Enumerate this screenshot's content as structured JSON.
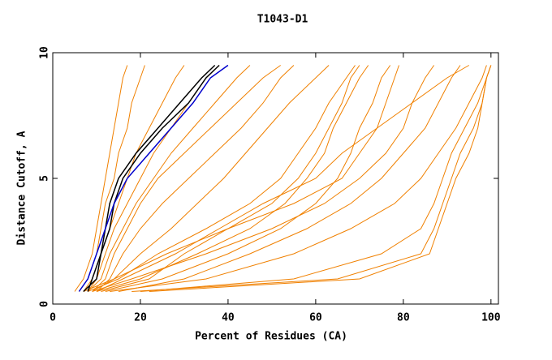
{
  "chart_data": {
    "type": "line",
    "title": "T1043-D1",
    "x_label": "Percent of Residues (CA)",
    "y_label": "Distance Cutoff, A",
    "xlim": [
      0,
      101.7
    ],
    "ylim": [
      0,
      10
    ],
    "xticks": [
      0,
      20,
      40,
      60,
      80,
      100
    ],
    "yticks": [
      0,
      5,
      10
    ],
    "series": [
      {
        "color": "#f08000",
        "x": [
          5,
          7,
          9,
          10,
          11,
          12,
          13,
          14,
          15,
          16,
          17
        ],
        "values": [
          0.5,
          1,
          2,
          3,
          4,
          5,
          6,
          7,
          8,
          9,
          9.5
        ]
      },
      {
        "color": "#f08000",
        "x": [
          6,
          8,
          10,
          11,
          12,
          14,
          15,
          17,
          18,
          20,
          21
        ],
        "values": [
          0.5,
          1,
          2,
          3,
          4,
          5,
          6,
          7,
          8,
          9,
          9.5
        ]
      },
      {
        "color": "#f08000",
        "x": [
          7,
          9,
          11,
          13,
          15,
          17,
          19,
          22,
          25,
          28,
          30
        ],
        "values": [
          0.5,
          1,
          2,
          3,
          4,
          5,
          6,
          7,
          8,
          9,
          9.5
        ]
      },
      {
        "color": "#f08000",
        "x": [
          8,
          10,
          12,
          14,
          17,
          20,
          23,
          27,
          31,
          35,
          38
        ],
        "values": [
          0.5,
          1,
          2,
          3,
          4,
          5,
          6,
          7,
          8,
          9,
          9.5
        ]
      },
      {
        "color": "#f08000",
        "x": [
          8,
          11,
          13,
          16,
          19,
          23,
          27,
          32,
          37,
          42,
          45
        ],
        "values": [
          0.5,
          1,
          2,
          3,
          4,
          5,
          6,
          7,
          8,
          9,
          9.5
        ]
      },
      {
        "color": "#f08000",
        "x": [
          9,
          12,
          14,
          17,
          20,
          24,
          30,
          36,
          42,
          48,
          52
        ],
        "values": [
          0.5,
          1,
          2,
          3,
          4,
          5,
          6,
          7,
          8,
          9,
          9.5
        ]
      },
      {
        "color": "#f08000",
        "x": [
          10,
          13,
          16,
          20,
          25,
          31,
          37,
          43,
          48,
          52,
          55
        ],
        "values": [
          0.5,
          1,
          2,
          3,
          4,
          5,
          6,
          7,
          8,
          9,
          9.5
        ]
      },
      {
        "color": "#f08000",
        "x": [
          9,
          14,
          20,
          27,
          33,
          39,
          44,
          49,
          54,
          60,
          63
        ],
        "values": [
          0.5,
          1,
          2,
          3,
          4,
          5,
          6,
          7,
          8,
          9,
          9.5
        ]
      },
      {
        "color": "#f08000",
        "x": [
          8,
          15,
          24,
          35,
          45,
          52,
          56,
          60,
          63,
          67,
          69
        ],
        "values": [
          0.5,
          1,
          2,
          3,
          4,
          5,
          6,
          7,
          8,
          9,
          9.5
        ]
      },
      {
        "color": "#f08000",
        "x": [
          7,
          14,
          26,
          40,
          50,
          56,
          60,
          63,
          66,
          68,
          70
        ],
        "values": [
          0.5,
          1,
          2,
          3,
          4,
          5,
          6,
          7,
          8,
          9,
          9.5
        ]
      },
      {
        "color": "#f08000",
        "x": [
          10,
          20,
          33,
          45,
          53,
          58,
          62,
          64,
          67,
          70,
          72
        ],
        "values": [
          0.5,
          1,
          2,
          3,
          4,
          5,
          6,
          7,
          8,
          9,
          9.5
        ]
      },
      {
        "color": "#f08000",
        "x": [
          12,
          25,
          40,
          52,
          60,
          65,
          68,
          70,
          73,
          75,
          77
        ],
        "values": [
          0.5,
          1,
          2,
          3,
          4,
          5,
          6,
          7,
          8,
          9,
          9.5
        ]
      },
      {
        "color": "#f08000",
        "x": [
          9,
          18,
          35,
          50,
          62,
          70,
          76,
          80,
          82,
          85,
          87
        ],
        "values": [
          0.5,
          1,
          2,
          3,
          4,
          5,
          6,
          7,
          8,
          9,
          9.5
        ]
      },
      {
        "color": "#f08000",
        "x": [
          15,
          30,
          45,
          58,
          68,
          75,
          80,
          85,
          88,
          91,
          93
        ],
        "values": [
          0.5,
          1,
          2,
          3,
          4,
          5,
          6,
          7,
          8,
          9,
          9.5
        ]
      },
      {
        "color": "#f08000",
        "x": [
          13,
          35,
          55,
          68,
          78,
          84,
          88,
          92,
          95,
          98,
          99
        ],
        "values": [
          0.5,
          1,
          2,
          3,
          4,
          5,
          6,
          7,
          8,
          9,
          9.5
        ]
      },
      {
        "color": "#f08000",
        "x": [
          20,
          55,
          75,
          84,
          87,
          89,
          91,
          94,
          97,
          99,
          100
        ],
        "values": [
          0.5,
          1,
          2,
          3,
          4,
          5,
          6,
          7,
          8,
          9,
          9.5
        ]
      },
      {
        "color": "#f08000",
        "x": [
          22,
          70,
          86,
          88,
          90,
          92,
          95,
          97,
          98,
          99,
          100
        ],
        "values": [
          0.5,
          1,
          2,
          3,
          4,
          5,
          6,
          7,
          8,
          9,
          9.5
        ]
      },
      {
        "color": "#f08000",
        "x": [
          18,
          65,
          84,
          87,
          89,
          91,
          93,
          96,
          98,
          99,
          100
        ],
        "values": [
          0.5,
          1,
          2,
          3,
          4,
          5,
          6,
          7,
          8,
          9,
          9.5
        ]
      },
      {
        "color": "#f08000",
        "x": [
          11,
          22,
          30,
          40,
          55,
          66,
          70,
          74,
          76,
          78,
          79
        ],
        "values": [
          0.5,
          1,
          2,
          3,
          4,
          5,
          6,
          7,
          8,
          9,
          9.5
        ]
      },
      {
        "color": "#f08000",
        "x": [
          10,
          16,
          28,
          38,
          48,
          60,
          66,
          74,
          82,
          90,
          95
        ],
        "values": [
          0.5,
          1,
          2,
          3,
          4,
          5,
          6,
          7,
          8,
          9,
          9.5
        ]
      },
      {
        "color": "#000000",
        "x": [
          8,
          9,
          11,
          12,
          13,
          15,
          19,
          24,
          29,
          34,
          37
        ],
        "values": [
          0.5,
          1,
          2,
          3,
          4,
          5,
          6,
          7,
          8,
          9,
          9.5
        ]
      },
      {
        "color": "#000000",
        "x": [
          7,
          10,
          11,
          13,
          14,
          16,
          20,
          25,
          31,
          35,
          38
        ],
        "values": [
          0.5,
          1,
          2,
          3,
          4,
          5,
          6,
          7,
          8,
          9,
          9.5
        ]
      },
      {
        "color": "#0000cc",
        "x": [
          6,
          8,
          10,
          12,
          14,
          17,
          22,
          27,
          32,
          36,
          40
        ],
        "values": [
          0.5,
          1,
          2,
          3,
          4,
          5,
          6,
          7,
          8,
          9,
          9.5
        ]
      }
    ]
  }
}
